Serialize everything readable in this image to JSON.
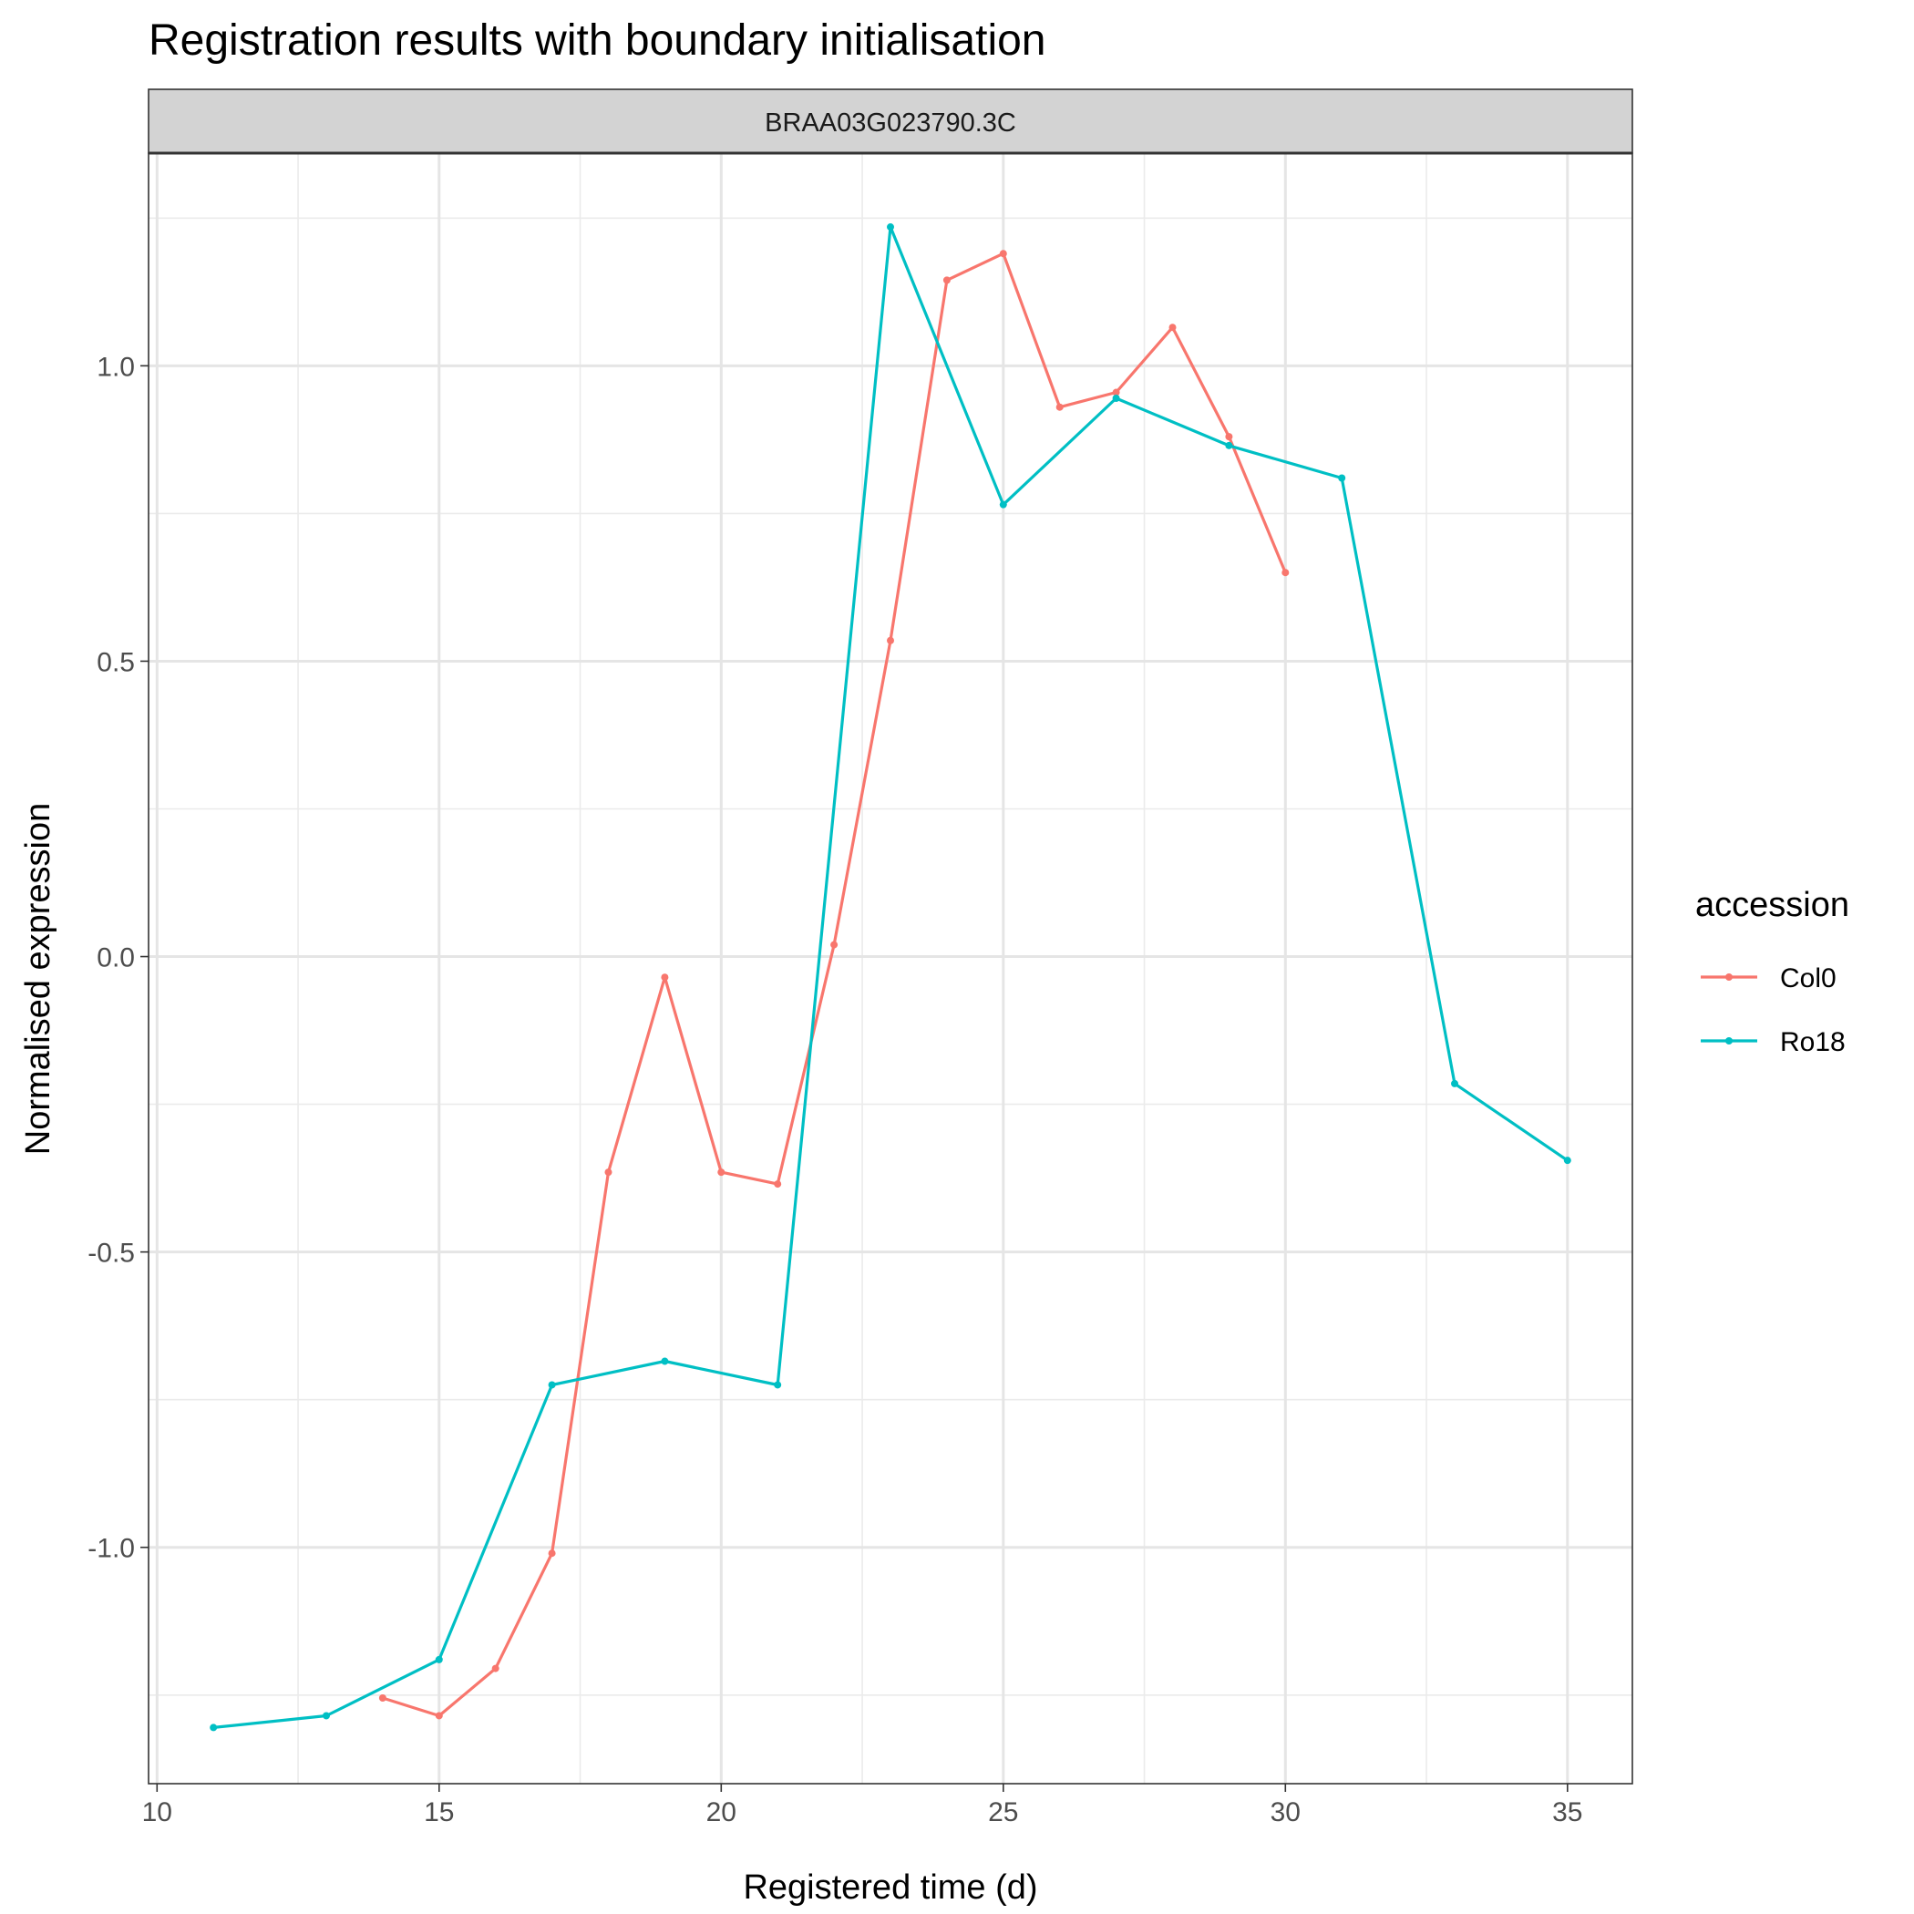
{
  "chart_data": {
    "type": "line",
    "title": "Registration results with boundary initialisation",
    "facet_label": "BRAA03G023790.3C",
    "xlabel": "Registered time (d)",
    "ylabel": "Normalised expression",
    "xlim": [
      9.85,
      36.15
    ],
    "ylim": [
      -1.4,
      1.36
    ],
    "x_ticks": [
      10,
      15,
      20,
      25,
      30,
      35
    ],
    "x_tick_labels": [
      "10",
      "15",
      "20",
      "25",
      "30",
      "35"
    ],
    "x_minor_ticks": [
      12.5,
      17.5,
      22.5,
      27.5,
      32.5
    ],
    "y_ticks": [
      -1.0,
      -0.5,
      0.0,
      0.5,
      1.0
    ],
    "y_tick_labels": [
      "-1.0",
      "-0.5",
      "0.0",
      "0.5",
      "1.0"
    ],
    "y_minor_ticks": [
      -1.25,
      -0.75,
      -0.25,
      0.25,
      0.75,
      1.25
    ],
    "grid": true,
    "legend_title": "accession",
    "legend_position": "right",
    "series": [
      {
        "name": "Col0",
        "color": "#F8766D",
        "x": [
          14,
          15,
          16,
          17,
          18,
          19,
          20,
          21,
          22,
          23,
          24,
          25,
          26,
          27,
          28,
          29,
          30
        ],
        "y": [
          -1.255,
          -1.285,
          -1.205,
          -1.01,
          -0.365,
          -0.035,
          -0.365,
          -0.385,
          0.02,
          0.535,
          1.145,
          1.19,
          0.93,
          0.955,
          1.065,
          0.88,
          0.65
        ]
      },
      {
        "name": "Ro18",
        "color": "#00BFC4",
        "x": [
          11,
          13,
          15,
          17,
          19,
          21,
          23,
          25,
          27,
          29,
          31,
          33,
          35
        ],
        "y": [
          -1.305,
          -1.285,
          -1.19,
          -0.725,
          -0.685,
          -0.725,
          1.235,
          0.765,
          0.945,
          0.865,
          0.81,
          -0.215,
          -0.345
        ]
      }
    ]
  }
}
